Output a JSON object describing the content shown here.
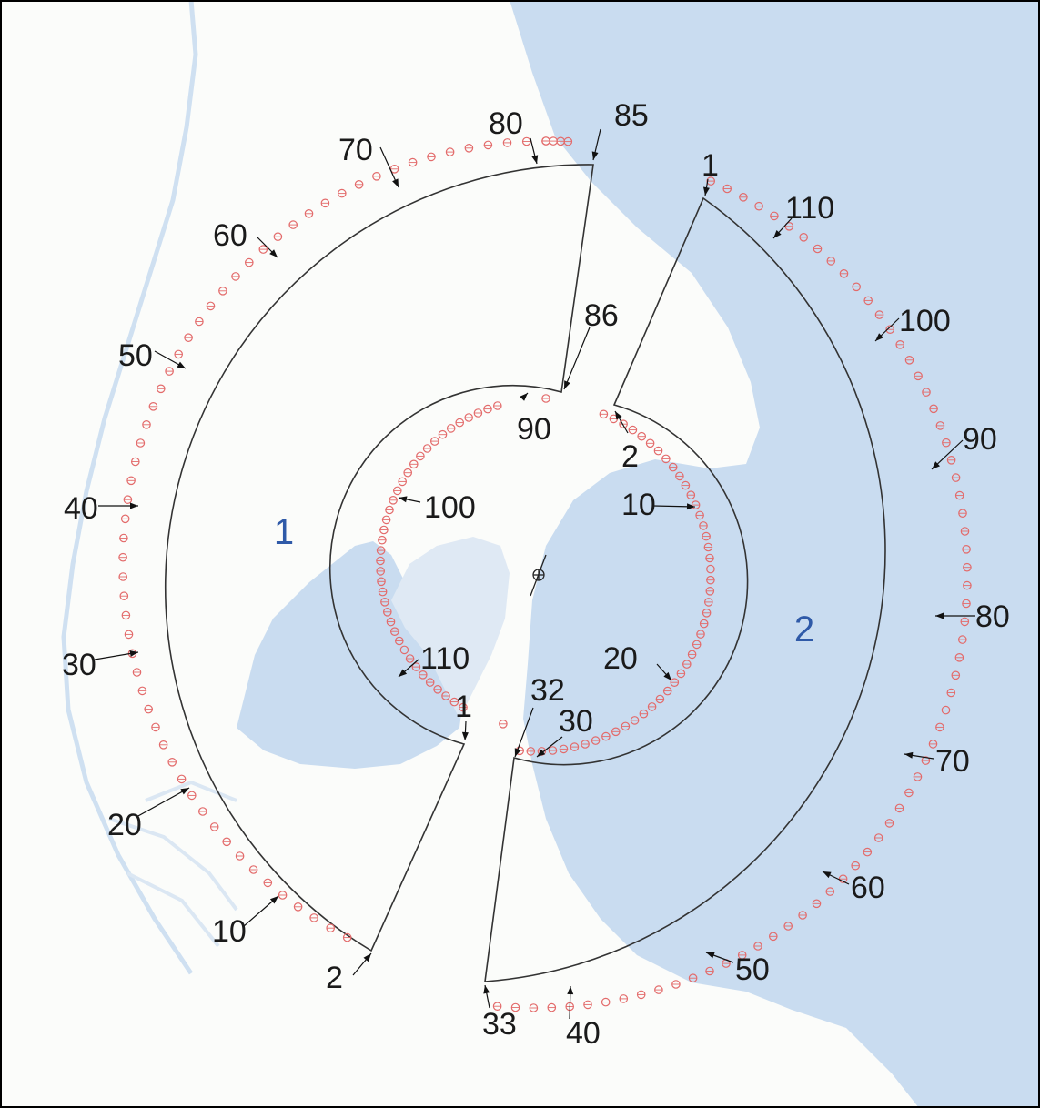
{
  "colors": {
    "land": "#fbfcfa",
    "water": "#c9dcf0",
    "water_shallow": "#dfe9f4",
    "river": "#cfe0f1",
    "track_line": "#333333",
    "receiver_marker": "#e36b6b",
    "region_label": "#2f5aa8",
    "label_text": "#1a1a1a",
    "frame": "#000000"
  },
  "regions": [
    {
      "id": "region-1",
      "label": "1"
    },
    {
      "id": "region-2",
      "label": "2"
    }
  ],
  "array_1": {
    "outer_labels": [
      "10",
      "20",
      "30",
      "40",
      "50",
      "60",
      "70",
      "80",
      "85"
    ],
    "inner_labels": [
      "86",
      "90",
      "100",
      "110",
      "1"
    ],
    "end_label": "2"
  },
  "array_2": {
    "outer_labels": [
      "1",
      "110",
      "100",
      "90",
      "80",
      "70",
      "60",
      "50",
      "40",
      "33"
    ],
    "inner_labels": [
      "2",
      "10",
      "20",
      "30",
      "32"
    ]
  },
  "center_marker_icon": "crosshair-icon"
}
